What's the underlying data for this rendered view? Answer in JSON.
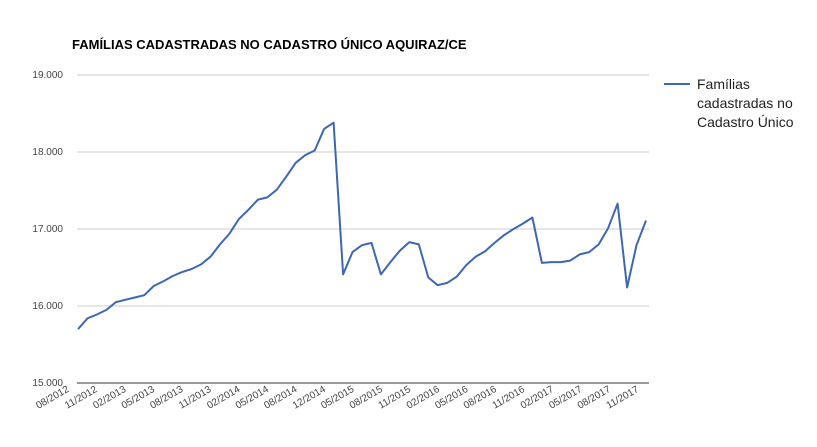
{
  "chart_data": {
    "type": "line",
    "title": "FAMÍLIAS CADASTRADAS NO CADASTRO ÚNICO AQUIRAZ/CE",
    "xlabel": "",
    "ylabel": "",
    "ylim": [
      15000,
      19000
    ],
    "yticks": [
      15000,
      16000,
      17000,
      18000,
      19000
    ],
    "ytick_labels": [
      "15.000",
      "16.000",
      "17.000",
      "18.000",
      "19.000"
    ],
    "xtick_labels": [
      "08/2012",
      "11/2012",
      "02/2013",
      "05/2013",
      "08/2013",
      "11/2013",
      "02/2014",
      "05/2014",
      "08/2014",
      "12/2014",
      "05/2015",
      "08/2015",
      "11/2015",
      "02/2016",
      "05/2016",
      "08/2016",
      "11/2016",
      "02/2017",
      "05/2017",
      "08/2017",
      "11/2017"
    ],
    "grid": true,
    "legend_position": "right",
    "color": "#3d66b3",
    "series": [
      {
        "name": "Famílias cadastradas no Cadastro Único",
        "values": [
          15700,
          15840,
          15890,
          15950,
          16050,
          16080,
          16110,
          16140,
          16260,
          16320,
          16390,
          16440,
          16480,
          16540,
          16640,
          16800,
          16940,
          17130,
          17250,
          17380,
          17410,
          17510,
          17680,
          17860,
          17960,
          18020,
          18300,
          18380,
          16410,
          16700,
          16790,
          16820,
          16410,
          16570,
          16720,
          16830,
          16800,
          16370,
          16270,
          16300,
          16380,
          16530,
          16640,
          16710,
          16820,
          16920,
          17000,
          17070,
          17150,
          16560,
          16570,
          16570,
          16590,
          16670,
          16700,
          16800,
          17010,
          17330,
          16240,
          16790,
          17110
        ]
      }
    ]
  }
}
